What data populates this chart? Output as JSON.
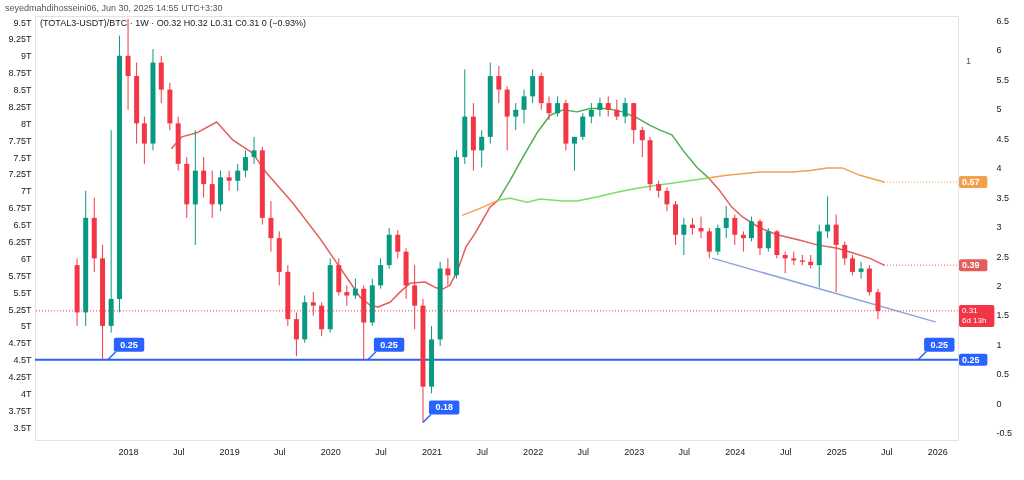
{
  "chart_data": {
    "type": "candlestick",
    "title": "seyedmahdihosseini06, Jun 30, 2025 14:55 UTC+3:30",
    "subtitle": "(TOTAL3-USDT)/BTC · 1W · O0.32 H0.32 L0.31 C0.31 0 (−0.93%)",
    "x": [
      "2017-07",
      "2017-08",
      "2017-09",
      "2017-10",
      "2017-11",
      "2017-12",
      "2018-01",
      "2018-02",
      "2018-03",
      "2018-04",
      "2018-05",
      "2018-06",
      "2018-07",
      "2018-08",
      "2018-09",
      "2018-10",
      "2018-11",
      "2018-12",
      "2019-01",
      "2019-02",
      "2019-03",
      "2019-04",
      "2019-05",
      "2019-06",
      "2019-07",
      "2019-08",
      "2019-09",
      "2019-10",
      "2019-11",
      "2019-12",
      "2020-01",
      "2020-02",
      "2020-03",
      "2020-04",
      "2020-05",
      "2020-06",
      "2020-07",
      "2020-08",
      "2020-09",
      "2020-10",
      "2020-11",
      "2020-12",
      "2021-01",
      "2021-02",
      "2021-03",
      "2021-04",
      "2021-05",
      "2021-06",
      "2021-07",
      "2021-08",
      "2021-09",
      "2021-10",
      "2021-11",
      "2021-12",
      "2022-01",
      "2022-02",
      "2022-03",
      "2022-04",
      "2022-05",
      "2022-06",
      "2022-07",
      "2022-08",
      "2022-09",
      "2022-10",
      "2022-11",
      "2022-12",
      "2023-01",
      "2023-02",
      "2023-03",
      "2023-04",
      "2023-05",
      "2023-06",
      "2023-07",
      "2023-08",
      "2023-09",
      "2023-10",
      "2023-11",
      "2023-12",
      "2024-01",
      "2024-02",
      "2024-03",
      "2024-04",
      "2024-05",
      "2024-06",
      "2024-07",
      "2024-08",
      "2024-09",
      "2024-10",
      "2024-11",
      "2024-12",
      "2025-01",
      "2025-02",
      "2025-03",
      "2025-04",
      "2025-05",
      "2025-06"
    ],
    "ohlc": [
      [
        5.9,
        6.0,
        5.0,
        5.2
      ],
      [
        5.2,
        7.0,
        5.0,
        6.6
      ],
      [
        6.6,
        6.9,
        5.8,
        6.0
      ],
      [
        6.0,
        6.2,
        4.5,
        5.0
      ],
      [
        5.0,
        7.9,
        4.9,
        5.4
      ],
      [
        5.4,
        9.3,
        5.2,
        9.0
      ],
      [
        9.0,
        9.55,
        8.2,
        8.7
      ],
      [
        8.7,
        8.9,
        7.7,
        8.0
      ],
      [
        8.0,
        8.1,
        7.4,
        7.7
      ],
      [
        7.7,
        9.1,
        7.6,
        8.9
      ],
      [
        8.9,
        9.0,
        8.3,
        8.5
      ],
      [
        8.5,
        8.6,
        7.9,
        8.0
      ],
      [
        8.0,
        8.1,
        7.3,
        7.4
      ],
      [
        7.4,
        7.5,
        6.6,
        6.8
      ],
      [
        6.8,
        7.9,
        6.2,
        7.3
      ],
      [
        7.3,
        7.5,
        6.9,
        7.1
      ],
      [
        7.1,
        7.3,
        6.6,
        6.8
      ],
      [
        6.8,
        7.3,
        6.7,
        7.2
      ],
      [
        7.2,
        7.3,
        7.0,
        7.15
      ],
      [
        7.15,
        7.4,
        7.0,
        7.3
      ],
      [
        7.3,
        7.6,
        7.2,
        7.5
      ],
      [
        7.5,
        7.8,
        7.4,
        7.6
      ],
      [
        7.6,
        7.65,
        6.5,
        6.6
      ],
      [
        6.6,
        6.85,
        6.1,
        6.3
      ],
      [
        6.3,
        6.4,
        5.6,
        5.8
      ],
      [
        5.8,
        5.9,
        5.0,
        5.1
      ],
      [
        5.1,
        5.2,
        4.55,
        4.8
      ],
      [
        4.8,
        5.45,
        4.75,
        5.35
      ],
      [
        5.35,
        5.5,
        5.15,
        5.3
      ],
      [
        5.3,
        5.35,
        4.85,
        4.95
      ],
      [
        4.95,
        6.0,
        4.9,
        5.9
      ],
      [
        5.9,
        6.0,
        5.45,
        5.5
      ],
      [
        5.5,
        5.6,
        5.3,
        5.45
      ],
      [
        5.45,
        5.7,
        5.4,
        5.55
      ],
      [
        5.55,
        5.6,
        4.5,
        5.05
      ],
      [
        5.05,
        5.7,
        5.0,
        5.6
      ],
      [
        5.6,
        6.0,
        5.55,
        5.9
      ],
      [
        5.9,
        6.45,
        5.85,
        6.35
      ],
      [
        6.35,
        6.42,
        6.0,
        6.1
      ],
      [
        6.1,
        6.15,
        5.4,
        5.6
      ],
      [
        5.6,
        5.9,
        4.95,
        5.3
      ],
      [
        5.3,
        5.4,
        3.57,
        4.1
      ],
      [
        4.1,
        5.0,
        4.0,
        4.8
      ],
      [
        4.8,
        5.95,
        4.7,
        5.85
      ],
      [
        5.85,
        6.0,
        5.6,
        5.75
      ],
      [
        5.75,
        7.6,
        5.7,
        7.5
      ],
      [
        7.5,
        8.8,
        7.4,
        8.1
      ],
      [
        8.1,
        8.3,
        7.3,
        7.6
      ],
      [
        7.6,
        7.9,
        7.35,
        7.8
      ],
      [
        7.8,
        8.9,
        7.7,
        8.7
      ],
      [
        8.7,
        8.85,
        8.3,
        8.5
      ],
      [
        8.5,
        8.55,
        7.6,
        8.1
      ],
      [
        8.1,
        8.3,
        7.9,
        8.2
      ],
      [
        8.2,
        8.5,
        8.0,
        8.4
      ],
      [
        8.4,
        8.8,
        8.3,
        8.7
      ],
      [
        8.7,
        8.75,
        8.2,
        8.3
      ],
      [
        8.3,
        8.4,
        8.05,
        8.15
      ],
      [
        8.15,
        8.4,
        8.1,
        8.3
      ],
      [
        8.3,
        8.35,
        7.6,
        7.7
      ],
      [
        7.7,
        7.8,
        7.3,
        7.8
      ],
      [
        7.8,
        8.15,
        7.75,
        8.1
      ],
      [
        8.1,
        8.3,
        8.0,
        8.2
      ],
      [
        8.2,
        8.38,
        8.1,
        8.3
      ],
      [
        8.3,
        8.4,
        8.1,
        8.2
      ],
      [
        8.2,
        8.35,
        8.05,
        8.1
      ],
      [
        8.1,
        8.38,
        8.0,
        8.3
      ],
      [
        8.3,
        8.3,
        7.7,
        7.9
      ],
      [
        7.9,
        7.95,
        7.5,
        7.75
      ],
      [
        7.75,
        7.8,
        7.0,
        7.1
      ],
      [
        7.1,
        7.15,
        6.9,
        7.0
      ],
      [
        7.0,
        7.05,
        6.7,
        6.8
      ],
      [
        6.8,
        6.85,
        6.2,
        6.35
      ],
      [
        6.35,
        6.6,
        6.05,
        6.5
      ],
      [
        6.5,
        6.6,
        6.35,
        6.45
      ],
      [
        6.45,
        6.62,
        6.3,
        6.4
      ],
      [
        6.4,
        6.45,
        6.0,
        6.1
      ],
      [
        6.1,
        6.5,
        6.05,
        6.45
      ],
      [
        6.45,
        6.78,
        6.3,
        6.6
      ],
      [
        6.6,
        6.65,
        6.2,
        6.35
      ],
      [
        6.35,
        6.4,
        6.1,
        6.3
      ],
      [
        6.3,
        6.62,
        6.25,
        6.55
      ],
      [
        6.55,
        6.58,
        6.05,
        6.15
      ],
      [
        6.15,
        6.45,
        6.1,
        6.4
      ],
      [
        6.4,
        6.42,
        6.0,
        6.05
      ],
      [
        6.05,
        6.1,
        5.78,
        6.0
      ],
      [
        6.0,
        6.1,
        5.9,
        5.97
      ],
      [
        5.97,
        6.05,
        5.9,
        5.95
      ],
      [
        5.95,
        6.05,
        5.85,
        5.9
      ],
      [
        5.9,
        6.5,
        5.57,
        6.4
      ],
      [
        6.4,
        6.92,
        6.3,
        6.5
      ],
      [
        6.5,
        6.65,
        5.5,
        6.2
      ],
      [
        6.2,
        6.25,
        5.9,
        6.0
      ],
      [
        6.0,
        6.05,
        5.75,
        5.8
      ],
      [
        5.8,
        5.95,
        5.7,
        5.85
      ],
      [
        5.85,
        5.9,
        5.45,
        5.5
      ],
      [
        5.5,
        5.55,
        5.1,
        5.22
      ]
    ],
    "colors": [
      "#f23645",
      "#089981",
      "#f23645",
      "#f23645",
      "#089981",
      "#089981",
      "#f23645",
      "#f23645",
      "#f23645",
      "#089981",
      "#f23645",
      "#f23645",
      "#f23645",
      "#f23645",
      "#089981",
      "#f23645",
      "#f23645",
      "#089981",
      "#f23645",
      "#089981",
      "#089981",
      "#089981",
      "#f23645",
      "#f23645",
      "#f23645",
      "#f23645",
      "#f23645",
      "#089981",
      "#f23645",
      "#f23645",
      "#089981",
      "#f23645",
      "#f23645",
      "#089981",
      "#f23645",
      "#089981",
      "#089981",
      "#089981",
      "#f23645",
      "#f23645",
      "#f23645",
      "#f23645",
      "#089981",
      "#089981",
      "#f23645",
      "#089981",
      "#089981",
      "#f23645",
      "#089981",
      "#089981",
      "#f23645",
      "#f23645",
      "#089981",
      "#089981",
      "#089981",
      "#f23645",
      "#f23645",
      "#089981",
      "#f23645",
      "#089981",
      "#089981",
      "#089981",
      "#089981",
      "#f23645",
      "#f23645",
      "#089981",
      "#f23645",
      "#f23645",
      "#f23645",
      "#f23645",
      "#f23645",
      "#f23645",
      "#089981",
      "#f23645",
      "#f23645",
      "#f23645",
      "#089981",
      "#089981",
      "#f23645",
      "#f23645",
      "#089981",
      "#f23645",
      "#089981",
      "#f23645",
      "#f23645",
      "#f23645",
      "#f23645",
      "#f23645",
      "#089981",
      "#089981",
      "#f23645",
      "#f23645",
      "#f23645",
      "#089981",
      "#f23645",
      "#f23645"
    ],
    "series": [
      {
        "type": "line",
        "color": "#e35d5b",
        "x": [
          "2018-06-08",
          "2018-07-14",
          "2018-09-06",
          "2018-11-17",
          "2019-01-15",
          "2019-03-27",
          "2019-05-17",
          "2019-08-19",
          "2019-11-24",
          "2020-01-25",
          "2020-03-12",
          "2020-04-17",
          "2020-05-23",
          "2020-06-21",
          "2020-08-04",
          "2020-09-09",
          "2020-10-15",
          "2020-12-08",
          "2021-01-14",
          "2021-02-08",
          "2021-03-08",
          "2021-04-06",
          "2021-05-05",
          "2021-06-07",
          "2021-07-31",
          "2021-08-29"
        ],
        "values": [
          7.63,
          7.8,
          7.86,
          8.02,
          7.75,
          7.56,
          7.26,
          6.82,
          6.3,
          5.93,
          5.65,
          5.43,
          5.31,
          5.28,
          5.35,
          5.5,
          5.63,
          5.65,
          5.57,
          5.54,
          5.6,
          5.83,
          6.17,
          6.37,
          6.76,
          6.86
        ]
      },
      {
        "type": "line",
        "color": "#4caf50",
        "x": [
          "2021-08-29",
          "2021-10-12",
          "2021-11-27",
          "2022-01-17",
          "2022-03-05",
          "2022-04-21",
          "2022-06-10",
          "2022-07-27",
          "2022-09-26",
          "2022-11-23",
          "2023-01-13",
          "2023-03-01",
          "2023-04-06",
          "2023-05-19",
          "2023-06-28",
          "2023-08-17",
          "2023-09-26"
        ],
        "values": [
          6.86,
          7.16,
          7.5,
          7.86,
          8.12,
          8.2,
          8.17,
          8.22,
          8.22,
          8.17,
          8.08,
          7.97,
          7.9,
          7.83,
          7.6,
          7.35,
          7.2
        ]
      },
      {
        "type": "line",
        "color": "#e35d5b",
        "x": [
          "2023-09-26",
          "2023-11-08",
          "2023-12-21",
          "2024-01-30",
          "2024-04-01",
          "2024-06-02",
          "2024-08-24",
          "2024-10-24",
          "2025-01-05",
          "2025-03-03",
          "2025-05-03",
          "2025-06-23"
        ],
        "values": [
          7.2,
          7.0,
          6.76,
          6.61,
          6.45,
          6.35,
          6.27,
          6.2,
          6.15,
          6.08,
          6.0,
          5.9
        ]
      },
      {
        "type": "line",
        "color": "#f2a04e",
        "x": [
          "2021-04-24",
          "2021-06-25",
          "2021-08-29"
        ],
        "values": [
          6.64,
          6.74,
          6.86
        ]
      },
      {
        "type": "line",
        "color": "#7fdc6a",
        "x": [
          "2021-08-29",
          "2021-10-12",
          "2021-12-12",
          "2022-01-28",
          "2022-04-21",
          "2022-06-10",
          "2022-08-21",
          "2022-11-01",
          "2023-01-13",
          "2023-04-06",
          "2023-05-12",
          "2023-09-26"
        ],
        "values": [
          6.86,
          6.89,
          6.83,
          6.88,
          6.85,
          6.85,
          6.91,
          6.98,
          7.04,
          7.09,
          7.11,
          7.19
        ]
      },
      {
        "type": "line",
        "color": "#f2a04e",
        "x": [
          "2023-09-26",
          "2023-12-03",
          "2024-04-01",
          "2024-07-30",
          "2024-09-29",
          "2024-11-29",
          "2025-01-23",
          "2025-03-28",
          "2025-06-23"
        ],
        "values": [
          7.19,
          7.23,
          7.28,
          7.28,
          7.3,
          7.34,
          7.34,
          7.23,
          7.13
        ]
      },
      {
        "type": "line",
        "color": "#8fa3e2",
        "x": [
          "2023-10-14",
          "2025-12-25"
        ],
        "values": [
          6.0,
          5.06
        ]
      }
    ],
    "xlim": [
      "2017-01-30",
      "2026-03-17"
    ],
    "xticks": [
      {
        "value": "2018-01-01",
        "label": "2018"
      },
      {
        "value": "2018-07-01",
        "label": "Jul"
      },
      {
        "value": "2019-01-01",
        "label": "2019"
      },
      {
        "value": "2019-07-01",
        "label": "Jul"
      },
      {
        "value": "2020-01-01",
        "label": "2020"
      },
      {
        "value": "2020-07-01",
        "label": "Jul"
      },
      {
        "value": "2021-01-01",
        "label": "2021"
      },
      {
        "value": "2021-07-01",
        "label": "Jul"
      },
      {
        "value": "2022-01-01",
        "label": "2022"
      },
      {
        "value": "2022-07-01",
        "label": "Jul"
      },
      {
        "value": "2023-01-01",
        "label": "2023"
      },
      {
        "value": "2023-07-01",
        "label": "Jul"
      },
      {
        "value": "2024-01-01",
        "label": "2024"
      },
      {
        "value": "2024-07-01",
        "label": "Jul"
      },
      {
        "value": "2025-01-01",
        "label": "2025"
      },
      {
        "value": "2025-07-01",
        "label": "Jul"
      },
      {
        "value": "2026-01-01",
        "label": "2026"
      }
    ],
    "ylim": [
      3.31,
      9.59
    ],
    "yticks": [
      {
        "value": 3.5,
        "label": "3.5T"
      },
      {
        "value": 3.75,
        "label": "3.75T"
      },
      {
        "value": 4,
        "label": "4T"
      },
      {
        "value": 4.25,
        "label": "4.25T"
      },
      {
        "value": 4.5,
        "label": "4.5T"
      },
      {
        "value": 4.75,
        "label": "4.75T"
      },
      {
        "value": 5,
        "label": "5T"
      },
      {
        "value": 5.25,
        "label": "5.25T"
      },
      {
        "value": 5.5,
        "label": "5.5T"
      },
      {
        "value": 5.75,
        "label": "5.75T"
      },
      {
        "value": 6,
        "label": "6T"
      },
      {
        "value": 6.25,
        "label": "6.25T"
      },
      {
        "value": 6.5,
        "label": "6.5T"
      },
      {
        "value": 6.75,
        "label": "6.75T"
      },
      {
        "value": 7,
        "label": "7T"
      },
      {
        "value": 7.25,
        "label": "7.25T"
      },
      {
        "value": 7.5,
        "label": "7.5T"
      },
      {
        "value": 7.75,
        "label": "7.75T"
      },
      {
        "value": 8,
        "label": "8T"
      },
      {
        "value": 8.25,
        "label": "8.25T"
      },
      {
        "value": 8.5,
        "label": "8.5T"
      },
      {
        "value": 8.75,
        "label": "8.75T"
      },
      {
        "value": 9,
        "label": "9T"
      },
      {
        "value": 9.25,
        "label": "9.25T"
      },
      {
        "value": 9.5,
        "label": "9.5T"
      }
    ],
    "y2lim": [
      -0.62,
      6.57
    ],
    "y2ticks": [
      -0.5,
      0,
      0.5,
      1,
      1.5,
      2,
      2.5,
      3,
      3.5,
      4,
      4.5,
      5,
      5.5,
      6,
      6.5
    ],
    "ref_lines": [
      {
        "axis": "y",
        "value": 4.5,
        "color": "#2962ff"
      },
      {
        "axis": "y2",
        "value": 1.57,
        "color": "#f23645",
        "line_style": "dotted"
      }
    ],
    "annotations": [
      {
        "text": "0.25",
        "x": "2017-10-20",
        "y": 4.5
      },
      {
        "text": "0.25",
        "x": "2020-05-16",
        "y": 4.5
      },
      {
        "text": "0.18",
        "x": "2020-12",
        "y": 3.57
      },
      {
        "text": "0.25",
        "x": "2025-10-24",
        "y": 4.5
      },
      {
        "text": "0.57",
        "x": "2025-06-23",
        "y": 7.13
      },
      {
        "text": "0.39",
        "x": "2025-06-23",
        "y": 5.9
      },
      {
        "text": "0.31\n6d 13h",
        "x": "2026-03-17",
        "y": 5.22
      },
      {
        "text": "0.25",
        "x": "2026-03-17",
        "y": 4.5
      },
      "1"
    ]
  }
}
